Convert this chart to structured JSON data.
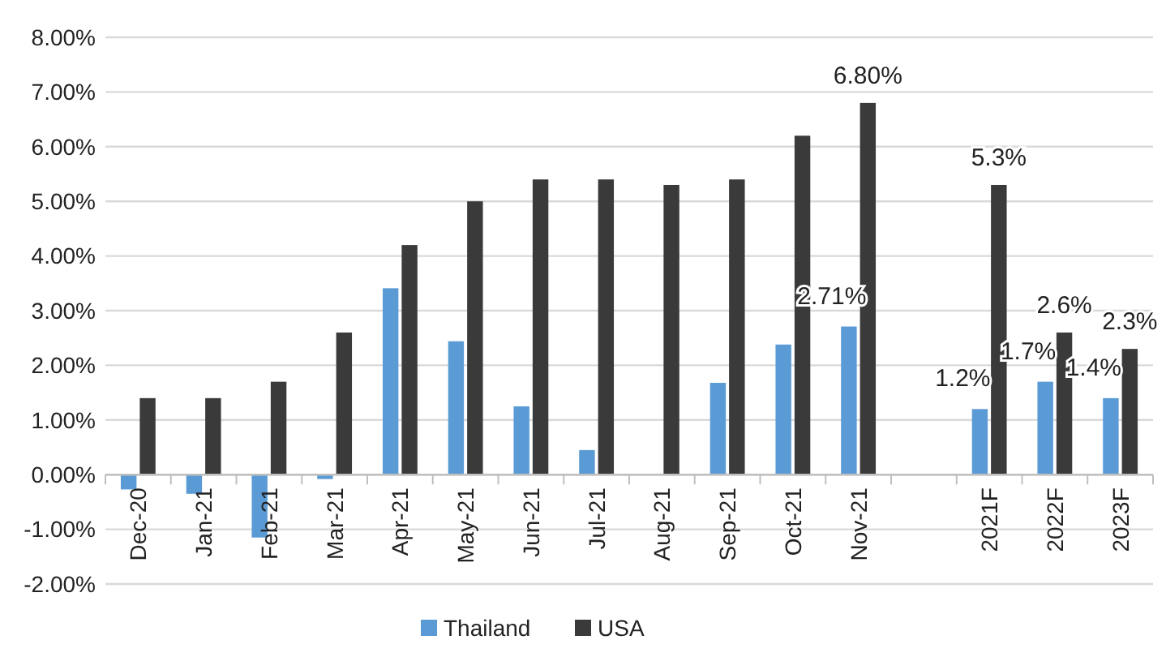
{
  "chart_data": {
    "type": "bar",
    "categories": [
      "Dec-20",
      "Jan-21",
      "Feb-21",
      "Mar-21",
      "Apr-21",
      "May-21",
      "Jun-21",
      "Jul-21",
      "Aug-21",
      "Sep-21",
      "Oct-21",
      "Nov-21",
      null,
      "2021F",
      "2022F",
      "2023F"
    ],
    "series": [
      {
        "name": "Thailand",
        "color": "#5b9bd5",
        "values": [
          -0.27,
          -0.35,
          -1.15,
          -0.08,
          3.41,
          2.44,
          1.25,
          0.45,
          null,
          1.68,
          2.38,
          2.71,
          null,
          1.2,
          1.7,
          1.4
        ],
        "value_labels": [
          null,
          null,
          null,
          null,
          null,
          null,
          null,
          null,
          null,
          null,
          null,
          "2.71%",
          null,
          "1.2%",
          "1.7%",
          "1.4%"
        ]
      },
      {
        "name": "USA",
        "color": "#3a3a3a",
        "values": [
          1.4,
          1.4,
          1.7,
          2.6,
          4.2,
          5.0,
          5.4,
          5.4,
          5.3,
          5.4,
          6.2,
          6.8,
          null,
          5.3,
          2.6,
          2.3
        ],
        "value_labels": [
          null,
          null,
          null,
          null,
          null,
          null,
          null,
          null,
          null,
          null,
          null,
          "6.80%",
          null,
          "5.3%",
          "2.6%",
          "2.3%"
        ]
      }
    ],
    "ylim": [
      -2,
      8
    ],
    "yticks": [
      {
        "value": -2,
        "label": "-2.00%"
      },
      {
        "value": -1,
        "label": "-1.00%"
      },
      {
        "value": 0,
        "label": "0.00%"
      },
      {
        "value": 1,
        "label": "1.00%"
      },
      {
        "value": 2,
        "label": "2.00%"
      },
      {
        "value": 3,
        "label": "3.00%"
      },
      {
        "value": 4,
        "label": "4.00%"
      },
      {
        "value": 5,
        "label": "5.00%"
      },
      {
        "value": 6,
        "label": "6.00%"
      },
      {
        "value": 7,
        "label": "7.00%"
      },
      {
        "value": 8,
        "label": "8.00%"
      }
    ],
    "grid": "y",
    "legend": "bottom"
  }
}
